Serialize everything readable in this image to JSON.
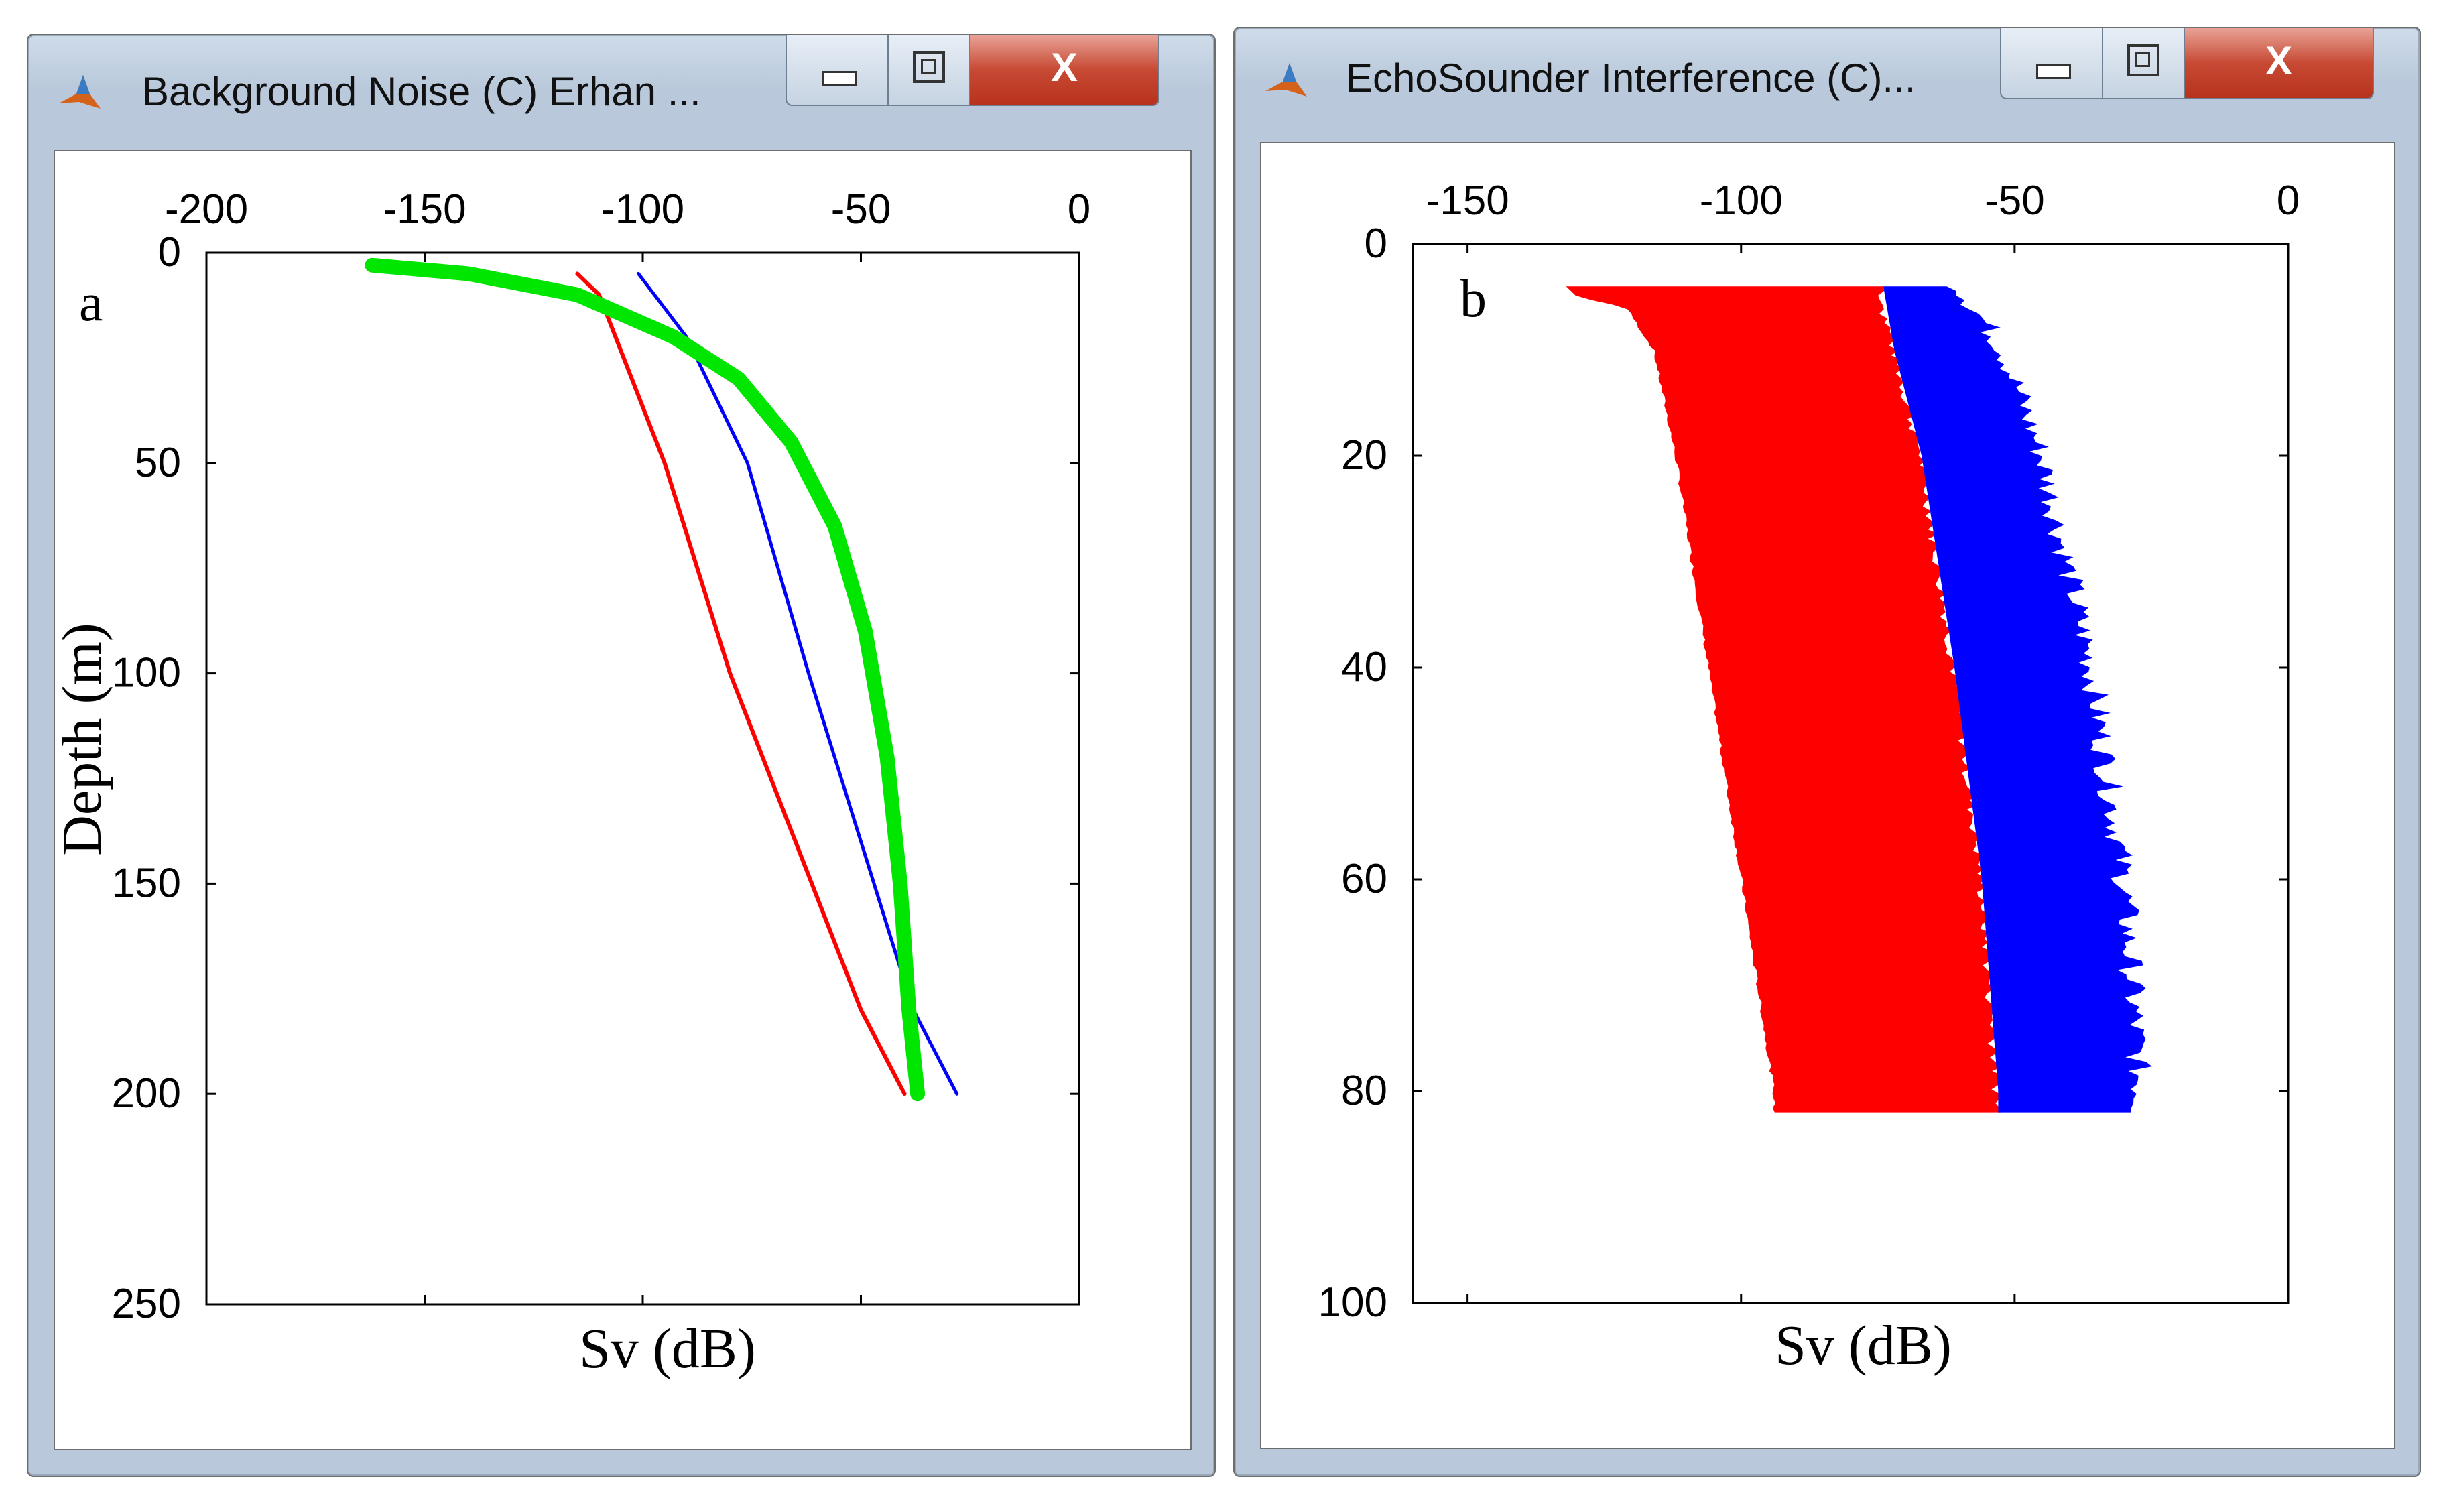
{
  "windows": {
    "a": {
      "title": "Background Noise (C) Erhan ...",
      "close_label": "X"
    },
    "b": {
      "title": "EchoSounder Interference (C)...",
      "close_label": "X"
    }
  },
  "colors": {
    "red": "#ff0000",
    "blue": "#0000ff",
    "green": "#00e600",
    "axes": "#000000"
  },
  "icons": {
    "app": "matlab-icon",
    "minimize": "minimize-icon",
    "maximize": "maximize-icon",
    "close": "close-icon"
  },
  "chart_data": [
    {
      "type": "line",
      "panel_label": "a",
      "xlabel": "Sv (dB)",
      "ylabel": "Depth (m)",
      "x_axis_position": "top",
      "y_axis_reversed": true,
      "xlim": [
        -200,
        0
      ],
      "ylim": [
        0,
        250
      ],
      "xticks": [
        "-200",
        "-150",
        "-100",
        "-50",
        "0"
      ],
      "yticks": [
        "0",
        "50",
        "100",
        "150",
        "200",
        "250"
      ],
      "grid": false,
      "series": [
        {
          "color": "#ff0000",
          "x": [
            -115,
            -110,
            -95,
            -80,
            -65,
            -50,
            -40
          ],
          "y": [
            5,
            10,
            50,
            100,
            140,
            180,
            200
          ]
        },
        {
          "color": "#0000ff",
          "x": [
            -101,
            -90,
            -76,
            -62,
            -50,
            -38,
            -28
          ],
          "y": [
            5,
            20,
            50,
            100,
            140,
            180,
            200
          ]
        },
        {
          "color": "#00e600",
          "x": [
            -162,
            -140,
            -115,
            -93,
            -78,
            -66,
            -56,
            -49,
            -44,
            -41,
            -39,
            -37
          ],
          "y": [
            3,
            5,
            10,
            20,
            30,
            45,
            65,
            90,
            120,
            150,
            180,
            200
          ]
        }
      ]
    },
    {
      "type": "area",
      "panel_label": "b",
      "xlabel": "Sv (dB)",
      "x_axis_position": "top",
      "y_axis_reversed": true,
      "xlim": [
        -160,
        0
      ],
      "ylim": [
        0,
        100
      ],
      "xticks": [
        "-150",
        "-100",
        "-50",
        "0"
      ],
      "yticks": [
        "0",
        "20",
        "40",
        "60",
        "80",
        "100"
      ],
      "grid": false,
      "series": [
        {
          "color": "#ff0000",
          "depth": [
            4,
            5,
            6,
            10,
            20,
            40,
            60,
            80,
            82
          ],
          "left": [
            -132,
            -130,
            -121,
            -116,
            -112,
            -106,
            -100,
            -94,
            -94
          ],
          "right": [
            -74,
            -74,
            -74,
            -72,
            -67,
            -61,
            -56,
            -53,
            -53
          ]
        },
        {
          "color": "#0000ff",
          "depth": [
            4,
            10,
            20,
            40,
            60,
            80,
            82
          ],
          "left": [
            -74,
            -72,
            -67,
            -61,
            -56,
            -53,
            -53
          ],
          "right": [
            -60,
            -52,
            -45,
            -36,
            -30,
            -27,
            -27
          ]
        }
      ]
    }
  ]
}
